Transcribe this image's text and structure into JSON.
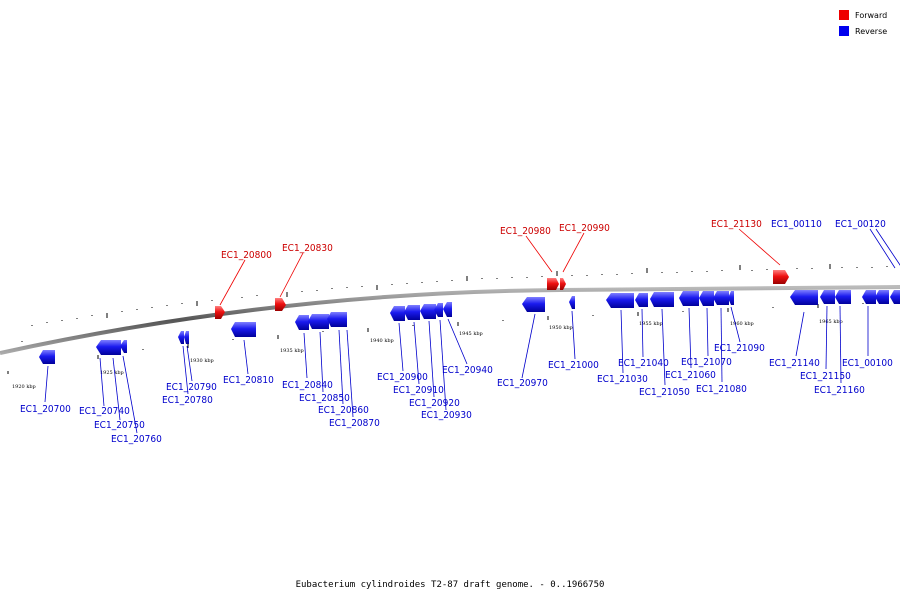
{
  "legend": {
    "forward_label": "Forward",
    "reverse_label": "Reverse",
    "forward_color": "#ee0000",
    "reverse_color": "#0000ee"
  },
  "caption": "Eubacterium cylindroides T2-87 draft genome. - 0..1966750",
  "kbp_markers": [
    "1920 kbp",
    "1925 kbp",
    "1930 kbp",
    "1935 kbp",
    "1940 kbp",
    "1945 kbp",
    "1950 kbp",
    "1955 kbp",
    "1960 kbp",
    "1965 kbp"
  ],
  "forward_genes": [
    "EC1_20800",
    "EC1_20830",
    "EC1_20980",
    "EC1_20990",
    "EC1_21130"
  ],
  "reverse_genes": [
    "EC1_20700",
    "EC1_20740",
    "EC1_20750",
    "EC1_20760",
    "EC1_20780",
    "EC1_20790",
    "EC1_20810",
    "EC1_20840",
    "EC1_20850",
    "EC1_20860",
    "EC1_20870",
    "EC1_20900",
    "EC1_20910",
    "EC1_20920",
    "EC1_20930",
    "EC1_20940",
    "EC1_20970",
    "EC1_21000",
    "EC1_21030",
    "EC1_21040",
    "EC1_21050",
    "EC1_21060",
    "EC1_21070",
    "EC1_21080",
    "EC1_21090",
    "EC1_21140",
    "EC1_21150",
    "EC1_21160",
    "EC1_00100",
    "EC1_00110",
    "EC1_00120"
  ]
}
